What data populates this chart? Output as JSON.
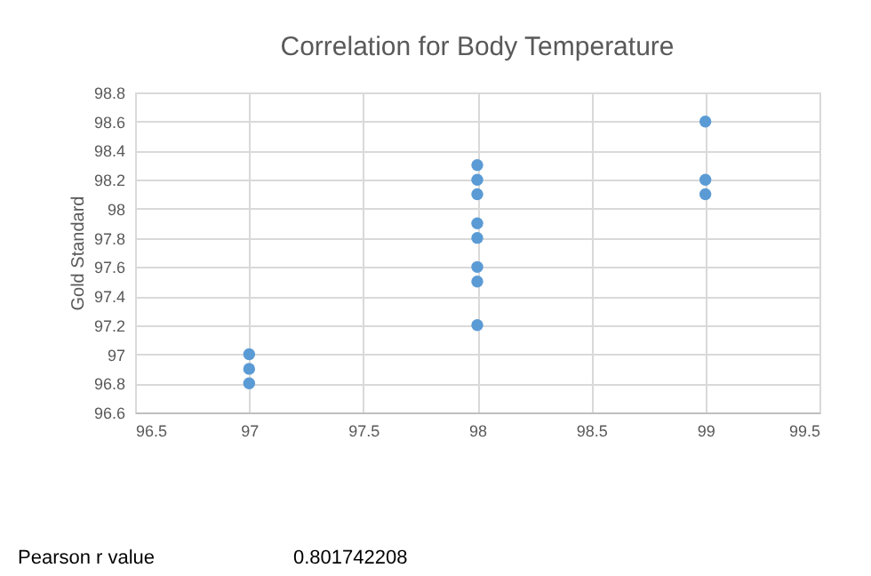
{
  "chart_data": {
    "type": "scatter",
    "title": "Correlation for Body Temperature",
    "ylabel": "Gold Standard",
    "x": [
      97,
      97,
      97,
      98,
      98,
      98,
      98,
      98,
      98,
      98,
      98,
      99,
      99,
      99
    ],
    "series": [
      {
        "color": "#5b9bd5",
        "values": [
          97.0,
          96.9,
          96.8,
          98.3,
          98.2,
          98.1,
          97.9,
          97.8,
          97.6,
          97.5,
          97.2,
          98.6,
          98.2,
          98.1
        ]
      }
    ],
    "xlim": [
      96.5,
      99.5
    ],
    "xticks": [
      96.5,
      97,
      97.5,
      98,
      98.5,
      99,
      99.5
    ],
    "ylim": [
      96.6,
      98.8
    ],
    "yticks": [
      96.6,
      96.8,
      97,
      97.2,
      97.4,
      97.6,
      97.8,
      98,
      98.2,
      98.4,
      98.6,
      98.8
    ],
    "grid": true,
    "marker": "circle",
    "annotations": [
      "Pearson r value",
      "0.801742208"
    ]
  }
}
